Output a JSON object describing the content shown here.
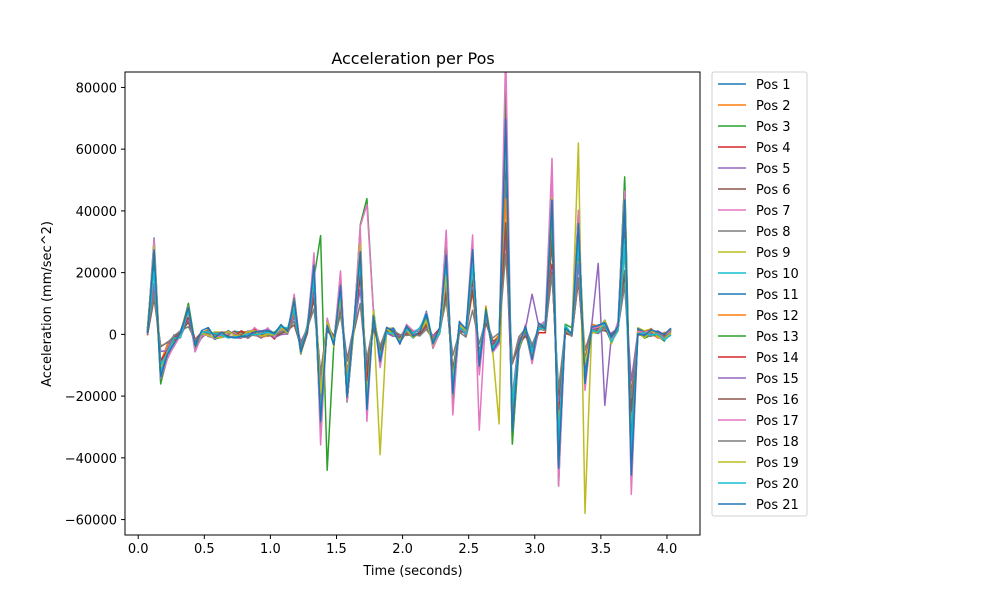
{
  "chart_data": {
    "type": "line",
    "title": "Acceleration per Pos",
    "xlabel": "Time (seconds)",
    "ylabel": "Acceleration (mm/sec^2)",
    "xlim": [
      -0.1,
      4.25
    ],
    "ylim": [
      -65000,
      85000
    ],
    "xticks": [
      0.0,
      0.5,
      1.0,
      1.5,
      2.0,
      2.5,
      3.0,
      3.5,
      4.0
    ],
    "xtick_labels": [
      "0.0",
      "0.5",
      "1.0",
      "1.5",
      "2.0",
      "2.5",
      "3.0",
      "3.5",
      "4.0"
    ],
    "yticks": [
      -60000,
      -40000,
      -20000,
      0,
      20000,
      40000,
      60000,
      80000
    ],
    "ytick_labels": [
      "−60000",
      "−40000",
      "−20000",
      "0",
      "20000",
      "40000",
      "60000",
      "80000"
    ],
    "grid": false,
    "legend_placement": "outside-right",
    "x": [
      0.07,
      0.12,
      0.17,
      0.22,
      0.27,
      0.32,
      0.38,
      0.43,
      0.48,
      0.53,
      0.58,
      0.63,
      0.68,
      0.73,
      0.78,
      0.83,
      0.88,
      0.93,
      0.98,
      1.03,
      1.08,
      1.13,
      1.18,
      1.23,
      1.28,
      1.33,
      1.38,
      1.43,
      1.48,
      1.53,
      1.58,
      1.63,
      1.68,
      1.73,
      1.78,
      1.83,
      1.88,
      1.93,
      1.98,
      2.03,
      2.08,
      2.13,
      2.18,
      2.23,
      2.28,
      2.33,
      2.38,
      2.43,
      2.48,
      2.53,
      2.58,
      2.63,
      2.68,
      2.73,
      2.78,
      2.83,
      2.88,
      2.93,
      2.98,
      3.03,
      3.08,
      3.13,
      3.18,
      3.23,
      3.28,
      3.33,
      3.38,
      3.43,
      3.48,
      3.53,
      3.58,
      3.63,
      3.68,
      3.73,
      3.78,
      3.83,
      3.88,
      3.93,
      3.98,
      4.03
    ],
    "base": [
      1000,
      28000,
      -14000,
      -7000,
      -3000,
      0,
      9000,
      -4500,
      0,
      1000,
      -500,
      0,
      0,
      0,
      0,
      0,
      1000,
      0,
      1000,
      -500,
      2000,
      1000,
      11000,
      -6000,
      2500,
      22000,
      -30000,
      4000,
      -3000,
      17000,
      -20000,
      2000,
      30000,
      -24000,
      7000,
      -9000,
      2000,
      1000,
      -2000,
      2000,
      0,
      1000,
      6000,
      -3000,
      1000,
      28000,
      -21000,
      3000,
      1000,
      27000,
      -11000,
      8000,
      -6000,
      -2000,
      74000,
      -32000,
      -4000,
      2000,
      -8000,
      3000,
      3000,
      46000,
      -46000,
      2000,
      1000,
      38000,
      -16000,
      2000,
      2000,
      4000,
      -2000,
      3000,
      41000,
      -43000,
      1000,
      0,
      1000,
      0,
      -1000,
      1000
    ],
    "series": [
      {
        "name": "Pos 1",
        "color": "#1f77b4",
        "scale": 1.0,
        "noise": 0.1,
        "seed": 1
      },
      {
        "name": "Pos 2",
        "color": "#ff7f0e",
        "scale": 0.95,
        "noise": 0.12,
        "seed": 2
      },
      {
        "name": "Pos 3",
        "color": "#2ca02c",
        "scale": 1.02,
        "noise": 0.15,
        "seed": 3
      },
      {
        "name": "Pos 4",
        "color": "#d62728",
        "scale": 0.8,
        "noise": 0.14,
        "seed": 4
      },
      {
        "name": "Pos 5",
        "color": "#9467bd",
        "scale": 0.85,
        "noise": 0.18,
        "seed": 5
      },
      {
        "name": "Pos 6",
        "color": "#8c564b",
        "scale": 0.7,
        "noise": 0.12,
        "seed": 6
      },
      {
        "name": "Pos 7",
        "color": "#e377c2",
        "scale": 1.05,
        "noise": 0.18,
        "seed": 7
      },
      {
        "name": "Pos 8",
        "color": "#7f7f7f",
        "scale": 0.75,
        "noise": 0.1,
        "seed": 8
      },
      {
        "name": "Pos 9",
        "color": "#bcbd22",
        "scale": 0.9,
        "noise": 0.2,
        "seed": 9
      },
      {
        "name": "Pos 10",
        "color": "#17becf",
        "scale": 0.88,
        "noise": 0.12,
        "seed": 10
      },
      {
        "name": "Pos 11",
        "color": "#1f77b4",
        "scale": 0.92,
        "noise": 0.1,
        "seed": 11
      },
      {
        "name": "Pos 12",
        "color": "#ff7f0e",
        "scale": 0.6,
        "noise": 0.12,
        "seed": 12
      },
      {
        "name": "Pos 13",
        "color": "#2ca02c",
        "scale": 0.98,
        "noise": 0.16,
        "seed": 13
      },
      {
        "name": "Pos 14",
        "color": "#d62728",
        "scale": 0.55,
        "noise": 0.12,
        "seed": 14
      },
      {
        "name": "Pos 15",
        "color": "#9467bd",
        "scale": 0.5,
        "noise": 0.14,
        "seed": 15
      },
      {
        "name": "Pos 16",
        "color": "#8c564b",
        "scale": 0.45,
        "noise": 0.12,
        "seed": 16
      },
      {
        "name": "Pos 17",
        "color": "#e377c2",
        "scale": 1.1,
        "noise": 0.15,
        "seed": 17
      },
      {
        "name": "Pos 18",
        "color": "#7f7f7f",
        "scale": 0.4,
        "noise": 0.1,
        "seed": 18
      },
      {
        "name": "Pos 19",
        "color": "#bcbd22",
        "scale": 0.85,
        "noise": 0.22,
        "seed": 19
      },
      {
        "name": "Pos 20",
        "color": "#17becf",
        "scale": 0.82,
        "noise": 0.12,
        "seed": 20
      },
      {
        "name": "Pos 21",
        "color": "#1f77b4",
        "scale": 1.0,
        "noise": 0.08,
        "seed": 21
      }
    ],
    "overrides": {
      "Pos 3": {
        "1.38": 32000,
        "1.43": -44000,
        "1.73": 44000,
        "2.78": 77000,
        "3.68": 51000,
        "3.73": -46000
      },
      "Pos 7": {
        "1.73": 42000,
        "3.13": 57000,
        "2.58": -31000
      },
      "Pos 9": {
        "3.33": 62000,
        "3.38": -58000,
        "1.83": -39000,
        "2.73": -29000
      },
      "Pos 5": {
        "3.48": 23000,
        "3.53": -23000,
        "2.98": 13000
      },
      "Pos 13": {
        "3.68": 50000
      }
    }
  }
}
